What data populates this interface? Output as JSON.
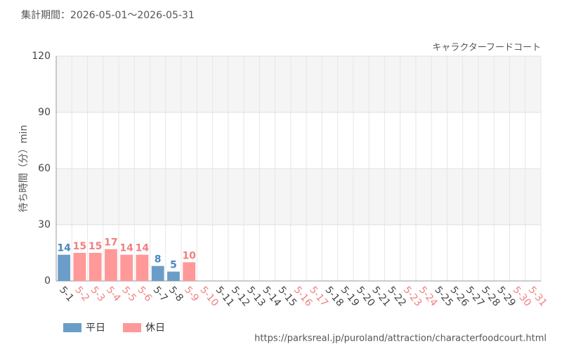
{
  "chart_data": {
    "type": "bar",
    "subtitle": "集計期間：2026-05-01〜2026-05-31",
    "title": "キャラクターフードコート",
    "y_label": "待ち時間（分）min",
    "source": "https://parksreal.jp/puroland/attraction/characterfoodcourt.html",
    "categories": [
      "5-1",
      "5-2",
      "5-3",
      "5-4",
      "5-5",
      "5-6",
      "5-7",
      "5-8",
      "5-9",
      "5-10",
      "5-11",
      "5-12",
      "5-13",
      "5-14",
      "5-15",
      "5-16",
      "5-17",
      "5-18",
      "5-19",
      "5-20",
      "5-21",
      "5-22",
      "5-23",
      "5-24",
      "5-25",
      "5-26",
      "5-27",
      "5-28",
      "5-29",
      "5-30",
      "5-31"
    ],
    "holiday": [
      false,
      true,
      true,
      true,
      true,
      true,
      false,
      false,
      true,
      true,
      false,
      false,
      false,
      false,
      false,
      true,
      true,
      false,
      false,
      false,
      false,
      false,
      true,
      true,
      false,
      false,
      false,
      false,
      false,
      true,
      true
    ],
    "series": [
      {
        "name": "平日",
        "color": "#6a9ec8",
        "label_color": "#4a86c0",
        "values": [
          14,
          null,
          null,
          null,
          null,
          null,
          8,
          5,
          null,
          null,
          null,
          null,
          null,
          null,
          null,
          null,
          null,
          null,
          null,
          null,
          null,
          null,
          null,
          null,
          null,
          null,
          null,
          null,
          null,
          null,
          null
        ]
      },
      {
        "name": "休日",
        "color": "#ff9999",
        "label_color": "#f08080",
        "values": [
          null,
          15,
          15,
          17,
          14,
          14,
          null,
          null,
          10,
          null,
          null,
          null,
          null,
          null,
          null,
          null,
          null,
          null,
          null,
          null,
          null,
          null,
          null,
          null,
          null,
          null,
          null,
          null,
          null,
          null,
          null
        ]
      }
    ],
    "ylim": [
      0,
      120
    ],
    "yticks": [
      0,
      30,
      60,
      90,
      120
    ],
    "grid": true,
    "bands": true,
    "weekday_label_color": "#444444",
    "holiday_label_color": "#f08080"
  }
}
